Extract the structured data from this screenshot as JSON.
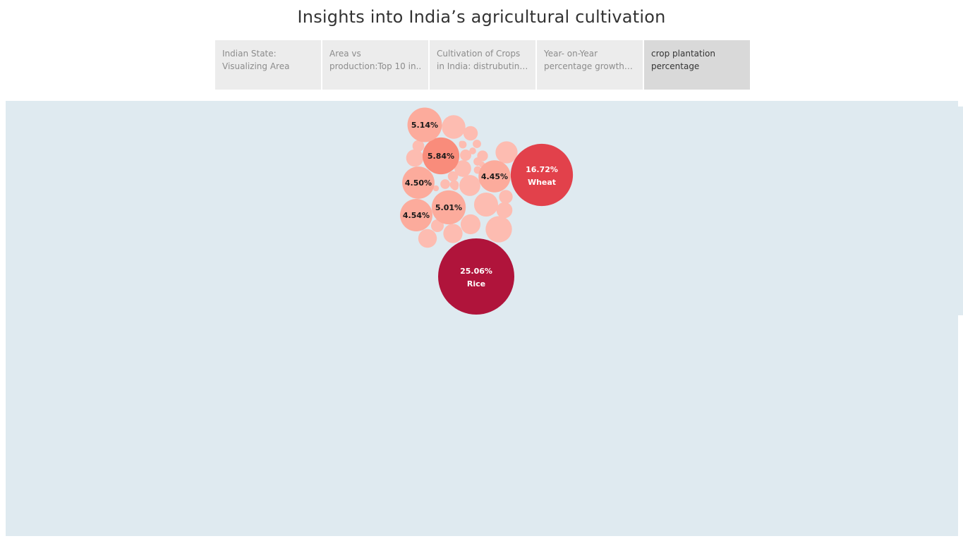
{
  "title": "Insights into India’s agricultural cultivation",
  "tabs": [
    {
      "label": "Indian State: Visualizing Area",
      "active": false
    },
    {
      "label": "Area vs production:Top 10 in..",
      "active": false
    },
    {
      "label": "Cultivation of Crops in India: distrubuting Ra..",
      "active": false
    },
    {
      "label": "Year- on-Year percentage growth of..",
      "active": false
    },
    {
      "label": "crop plantation percentage",
      "active": true
    }
  ],
  "chart_data": {
    "type": "packed-bubble",
    "labeled": [
      {
        "crop": "Rice",
        "percent": "25.06%",
        "value": 25.06
      },
      {
        "crop": "Wheat",
        "percent": "16.72%",
        "value": 16.72
      },
      {
        "crop": "",
        "percent": "5.84%",
        "value": 5.84
      },
      {
        "crop": "",
        "percent": "5.14%",
        "value": 5.14
      },
      {
        "crop": "",
        "percent": "5.01%",
        "value": 5.01
      },
      {
        "crop": "",
        "percent": "4.54%",
        "value": 4.54
      },
      {
        "crop": "",
        "percent": "4.50%",
        "value": 4.5
      },
      {
        "crop": "",
        "percent": "4.45%",
        "value": 4.45
      }
    ],
    "unlabeled_values": [
      3.0,
      2.5,
      2.4,
      2.1,
      1.9,
      1.7,
      1.6,
      1.5,
      1.3,
      1.2,
      1.1,
      0.9,
      0.8,
      0.7,
      0.6,
      0.55,
      0.5,
      0.45,
      0.4,
      0.35,
      0.3,
      0.3,
      0.25,
      0.25,
      0.2,
      0.2,
      0.2,
      0.15,
      0.15,
      0.15,
      0.1,
      0.1
    ],
    "colors": {
      "max": "#b0143b",
      "high": "#e2414b",
      "mid": "#f98c7b",
      "low": "#fcab9c",
      "min": "#fdbcb1",
      "dark_label": "#1a1a1a",
      "light_label": "#ffffff"
    }
  }
}
